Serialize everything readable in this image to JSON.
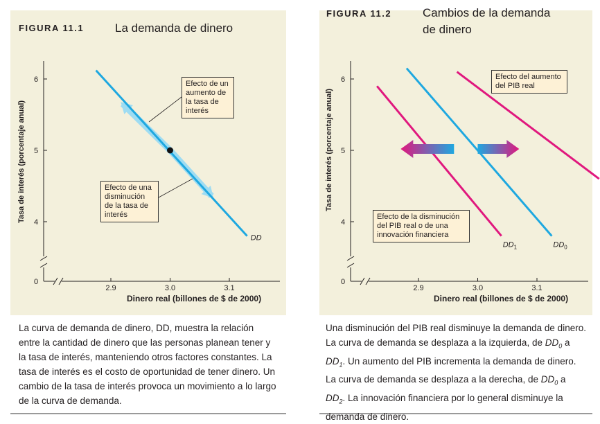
{
  "figure1": {
    "label": "FIGURA 11.1",
    "title": "La demanda de dinero",
    "ylabel": "Tasa de interés (porcentaje anual)",
    "xlabel": "Dinero real (billones de $ de 2000)",
    "annotation_up": "Efecto de un aumento de la tasa de interés",
    "annotation_down": "Efecto de una disminución de la tasa de interés",
    "caption": "La curva de demanda de dinero, DD, muestra la relación entre la cantidad de dinero que las personas planean tener y la tasa de interés, manteniendo otros factores constantes. La tasa de interés es el costo de oportunidad de tener dinero. Un cambio de la tasa de interés provoca un movimiento a lo largo de la curva de demanda."
  },
  "figure2": {
    "label": "FIGURA 11.2",
    "title": "Cambios de la demanda de dinero",
    "ylabel": "Tasa de interés (porcentaje anual)",
    "xlabel": "Dinero real (billones de $ de 2000)",
    "annotation_increase": "Efecto del aumento del PIB real",
    "annotation_decrease": "Efecto de la disminución del PIB real o de una innovación financiera",
    "caption_parts": {
      "p1": "Una disminución del PIB real disminuye la demanda de dinero. La curva de demanda se desplaza a la izquierda, de ",
      "p2": " a ",
      "p3": ". Un aumento del PIB incrementa la demanda de dinero. La curva de demanda se desplaza a la derecha, de ",
      "p4": " a ",
      "p5": ". La innovación financiera por lo general disminuye la demanda de dinero.",
      "dd": "DD",
      "sub0": "0",
      "sub1": "1",
      "sub2": "2"
    }
  },
  "colors": {
    "panel_bg": "#f3f0dc",
    "dd_blue": "#1ea8e0",
    "shift_magenta": "#e0187e",
    "arrow_highlight": "#9edcf2",
    "annotation_bg": "#fdf1d6"
  },
  "chart_data": [
    {
      "type": "line",
      "xlim": [
        2.8,
        3.15
      ],
      "ylim": [
        3.5,
        6.3
      ],
      "x_ticks": [
        "2.9",
        "3.0",
        "3.1"
      ],
      "y_ticks": [
        "4",
        "5",
        "6"
      ],
      "origin_label": "0",
      "axis_break": true,
      "series": [
        {
          "name": "DD",
          "x": [
            2.875,
            3.13
          ],
          "y": [
            6.12,
            3.8
          ]
        }
      ],
      "point": {
        "x": 3.0,
        "y": 5.0
      },
      "movement_arrows": [
        {
          "from": [
            3.0,
            5.0
          ],
          "to": [
            2.92,
            5.65
          ],
          "label": "Efecto de un aumento de la tasa de interés"
        },
        {
          "from": [
            3.0,
            5.0
          ],
          "to": [
            3.07,
            4.36
          ],
          "label": "Efecto de una disminución de la tasa de interés"
        }
      ]
    },
    {
      "type": "line",
      "xlim": [
        2.8,
        3.15
      ],
      "ylim": [
        3.5,
        6.3
      ],
      "x_ticks": [
        "2.9",
        "3.0",
        "3.1"
      ],
      "y_ticks": [
        "4",
        "5",
        "6"
      ],
      "origin_label": "0",
      "axis_break": true,
      "series": [
        {
          "name": "DD0",
          "x": [
            2.88,
            3.125
          ],
          "y": [
            6.15,
            3.8
          ]
        },
        {
          "name": "DD1",
          "x": [
            2.83,
            3.04
          ],
          "y": [
            5.9,
            3.8
          ]
        },
        {
          "name": "DD2",
          "x": [
            2.965,
            3.205
          ],
          "y": [
            6.1,
            4.6
          ]
        }
      ],
      "shift_arrows": [
        {
          "direction": "left",
          "from": 2.96,
          "to": 2.87,
          "y": 5.02
        },
        {
          "direction": "right",
          "from": 3.0,
          "to": 3.07,
          "y": 5.02
        }
      ]
    }
  ]
}
